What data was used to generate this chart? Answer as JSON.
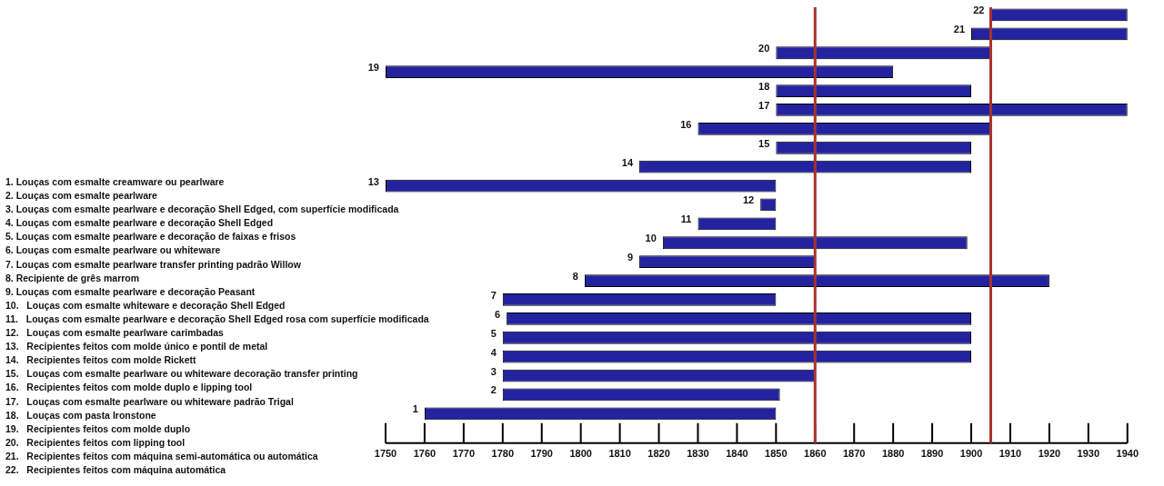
{
  "chart_data": {
    "type": "bar",
    "orientation": "horizontal",
    "categories": [
      "22",
      "21",
      "20",
      "19",
      "18",
      "17",
      "16",
      "15",
      "14",
      "13",
      "12",
      "11",
      "10",
      "9",
      "8",
      "7",
      "6",
      "5",
      "4",
      "3",
      "2",
      "1"
    ],
    "base": [
      1905,
      1900,
      1850,
      1750,
      1850,
      1850,
      1830,
      1850,
      1815,
      1750,
      1846,
      1830,
      1821,
      1815,
      1801,
      1780,
      1781,
      1780,
      1780,
      1780,
      1780,
      1760
    ],
    "values": [
      35,
      40,
      55,
      130,
      50,
      90,
      75,
      50,
      85,
      100,
      4,
      20,
      78,
      45,
      119,
      70,
      119,
      120,
      120,
      80,
      71,
      90
    ],
    "color": "#2323a0",
    "xlim": [
      1750,
      1940
    ],
    "xticks": [
      1750,
      1760,
      1770,
      1780,
      1790,
      1800,
      1810,
      1820,
      1830,
      1840,
      1850,
      1860,
      1870,
      1880,
      1890,
      1900,
      1910,
      1920,
      1930,
      1940
    ],
    "grid": false,
    "ref_lines": [
      {
        "axis": "x",
        "value": 1860,
        "color": "#a8322d"
      },
      {
        "axis": "x",
        "value": 1905,
        "color": "#a8322d"
      }
    ],
    "annotations": [
      "1. Louças com esmalte creamware ou pearlware",
      "2. Louças com esmalte pearlware",
      "3. Louças com esmalte pearlware e decoração Shell Edged, com superfície modificada",
      "4. Louças com esmalte pearlware e decoração Shell Edged",
      "5. Louças com esmalte pearlware e decoração de faixas e frisos",
      "6. Louças com esmalte pearlware ou whiteware",
      "7. Louças com esmalte pearlware transfer printing padrão Willow",
      "8. Recipiente de grês marrom",
      "9. Louças com esmalte pearlware e decoração Peasant",
      "10.   Louças com esmalte whiteware e decoração Shell Edged",
      "11.   Louças com esmalte pearlware e decoração Shell Edged rosa com superfície modificada",
      "12.   Louças com esmalte pearlware carimbadas",
      "13.   Recipientes feitos com molde único e pontil de metal",
      "14.   Recipientes feitos com molde Rickett",
      "15.   Louças com esmalte pearlware ou whiteware decoração transfer printing",
      "16.   Recipientes feitos com molde duplo e lipping tool",
      "17.   Louças com esmalte pearlware ou whiteware padrão Trigal",
      "18.   Louças com pasta Ironstone",
      "19.   Recipientes feitos com molde duplo",
      "20.   Recipientes feitos com lipping tool",
      "21.   Recipientes feitos com máquina semi-automática ou automática",
      "22.   Recipientes feitos com máquina automática"
    ]
  }
}
